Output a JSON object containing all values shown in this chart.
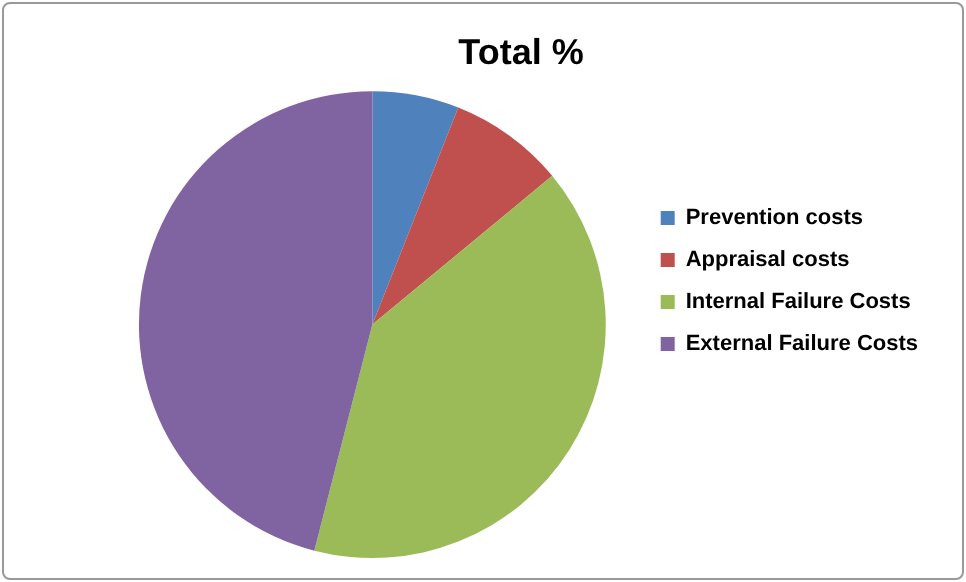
{
  "chart_data": {
    "type": "pie",
    "title": "Total %",
    "categories": [
      "Prevention costs",
      "Appraisal costs",
      "Internal Failure Costs",
      "External Failure Costs"
    ],
    "values": [
      6,
      8,
      40,
      46
    ],
    "colors": [
      "#4f81bd",
      "#c0504d",
      "#9bbb59",
      "#8064a2"
    ],
    "legend": "right"
  }
}
